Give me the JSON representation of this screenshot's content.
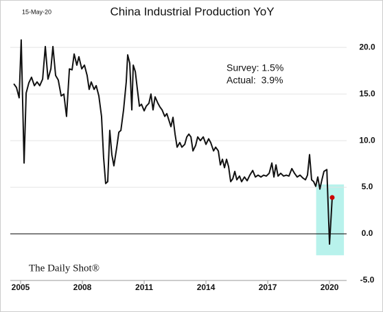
{
  "chart_data": {
    "type": "line",
    "title": "China Industrial Production YoY",
    "date": "15-May-20",
    "annotations": [
      "Survey: 1.5%",
      "Actual:  3.9%"
    ],
    "source": "The Daily Shot®",
    "xlim": [
      2004.5,
      2020.83
    ],
    "xticks": [
      2005,
      2008,
      2011,
      2014,
      2017,
      2020
    ],
    "ylim": [
      -5,
      22
    ],
    "yticks": [
      {
        "value": -5,
        "label": "-5.0"
      },
      {
        "value": 0,
        "label": "0.0"
      },
      {
        "value": 5,
        "label": "5.0"
      },
      {
        "value": 10,
        "label": "10.0"
      },
      {
        "value": 15,
        "label": "15.0"
      },
      {
        "value": 20,
        "label": "20.0"
      }
    ],
    "grid": true,
    "zero_line": true,
    "highlight": {
      "x": [
        2019.35,
        2020.7
      ],
      "y": [
        -2.3,
        5.3
      ],
      "color": "#b8f2ec"
    },
    "last_point_color": "#cc0000",
    "series": [
      {
        "color": "#111111",
        "x": [
          2004.67,
          2004.8,
          2004.93,
          2005.03,
          2005.17,
          2005.27,
          2005.4,
          2005.53,
          2005.67,
          2005.8,
          2005.93,
          2006.07,
          2006.2,
          2006.33,
          2006.47,
          2006.57,
          2006.7,
          2006.83,
          2006.97,
          2007.1,
          2007.23,
          2007.37,
          2007.5,
          2007.6,
          2007.73,
          2007.83,
          2007.97,
          2008.1,
          2008.23,
          2008.33,
          2008.43,
          2008.57,
          2008.67,
          2008.8,
          2008.93,
          2009.03,
          2009.13,
          2009.23,
          2009.33,
          2009.43,
          2009.53,
          2009.67,
          2009.77,
          2009.87,
          2010,
          2010.13,
          2010.2,
          2010.3,
          2010.4,
          2010.47,
          2010.57,
          2010.67,
          2010.77,
          2010.87,
          2011,
          2011.1,
          2011.23,
          2011.33,
          2011.43,
          2011.53,
          2011.67,
          2011.77,
          2011.87,
          2012,
          2012.1,
          2012.2,
          2012.3,
          2012.4,
          2012.5,
          2012.6,
          2012.73,
          2012.83,
          2012.97,
          2013.07,
          2013.17,
          2013.27,
          2013.37,
          2013.5,
          2013.6,
          2013.73,
          2013.87,
          2014,
          2014.13,
          2014.23,
          2014.37,
          2014.47,
          2014.6,
          2014.7,
          2014.8,
          2014.9,
          2015,
          2015.1,
          2015.2,
          2015.3,
          2015.4,
          2015.5,
          2015.63,
          2015.73,
          2015.87,
          2016,
          2016.13,
          2016.27,
          2016.4,
          2016.53,
          2016.67,
          2016.8,
          2016.93,
          2017.07,
          2017.2,
          2017.3,
          2017.4,
          2017.5,
          2017.63,
          2017.77,
          2017.9,
          2018.03,
          2018.17,
          2018.3,
          2018.43,
          2018.57,
          2018.7,
          2018.83,
          2018.93,
          2019.03,
          2019.13,
          2019.23,
          2019.33,
          2019.43,
          2019.53,
          2019.63,
          2019.73,
          2019.87,
          2020.0,
          2020.13
        ],
        "values": [
          16.1,
          15.7,
          14.6,
          20.8,
          7.6,
          15.1,
          16.2,
          16.8,
          15.9,
          16.3,
          15.9,
          16.6,
          20.1,
          16.6,
          17.7,
          20.1,
          17.0,
          16.5,
          14.8,
          15.0,
          12.6,
          17.7,
          17.6,
          19.3,
          18.1,
          19.0,
          17.7,
          18.1,
          17.0,
          15.5,
          16.3,
          15.5,
          15.9,
          14.8,
          12.6,
          8.2,
          5.4,
          5.6,
          11.1,
          8.5,
          7.3,
          9.3,
          10.9,
          11.1,
          13.3,
          16.3,
          19.2,
          18.3,
          13.3,
          18.1,
          17.4,
          15.5,
          13.7,
          13.9,
          13.2,
          13.7,
          14.0,
          15.0,
          13.3,
          14.7,
          14.0,
          13.6,
          13.3,
          12.6,
          12.9,
          12.2,
          11.5,
          12.5,
          10.7,
          9.3,
          9.8,
          9.3,
          9.6,
          10.4,
          10.7,
          10.4,
          8.9,
          9.5,
          10.4,
          10.0,
          10.4,
          9.6,
          10.2,
          9.8,
          8.9,
          9.3,
          8.9,
          7.4,
          8.0,
          7.1,
          8.0,
          7.2,
          5.6,
          5.9,
          6.7,
          5.8,
          6.2,
          5.6,
          6.1,
          5.7,
          6.3,
          6.8,
          6.1,
          6.3,
          6.1,
          6.3,
          6.2,
          6.5,
          7.6,
          6.1,
          7.4,
          6.2,
          6.5,
          6.2,
          6.3,
          6.2,
          7.0,
          6.5,
          6.1,
          6.3,
          6.0,
          5.8,
          6.3,
          8.5,
          5.8,
          5.6,
          5.1,
          6.1,
          4.8,
          5.8,
          6.7,
          6.9,
          -1.1,
          3.9
        ]
      }
    ]
  }
}
